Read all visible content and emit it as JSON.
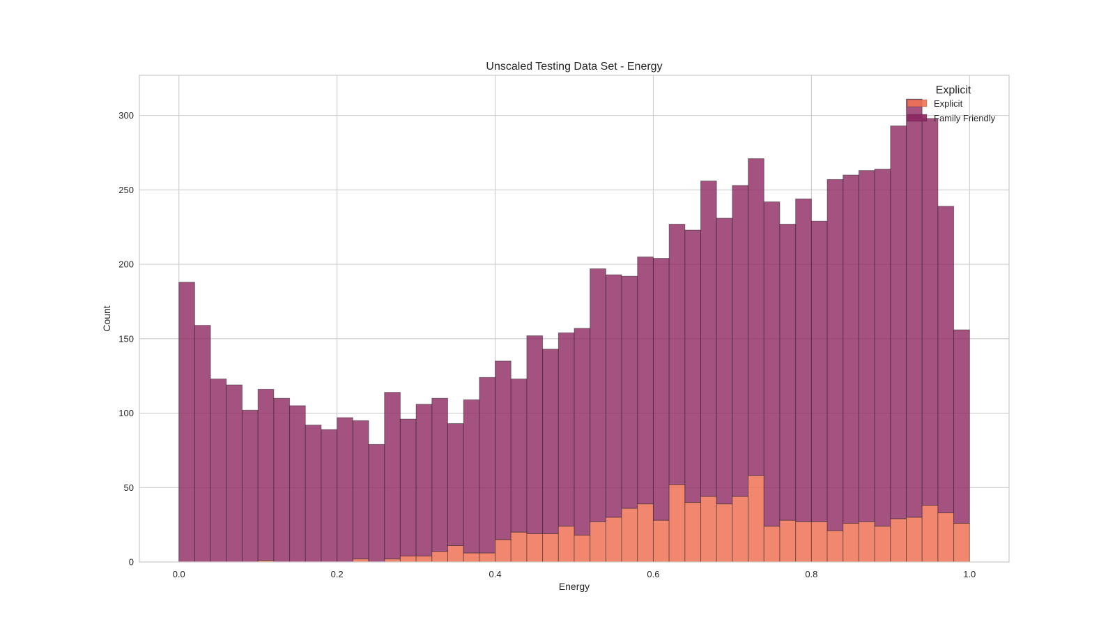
{
  "chart_data": {
    "type": "bar",
    "subtype": "stacked-histogram",
    "title": "Unscaled Testing Data Set - Energy",
    "xlabel": "Energy",
    "ylabel": "Count",
    "xlim": [
      -0.05,
      1.05
    ],
    "ylim": [
      0,
      327
    ],
    "xticks": [
      0.0,
      0.2,
      0.4,
      0.6,
      0.8,
      1.0
    ],
    "xtick_labels": [
      "0.0",
      "0.2",
      "0.4",
      "0.6",
      "0.8",
      "1.0"
    ],
    "yticks": [
      0,
      50,
      100,
      150,
      200,
      250,
      300
    ],
    "ytick_labels": [
      "0",
      "50",
      "100",
      "150",
      "200",
      "250",
      "300"
    ],
    "grid": true,
    "bin_start": 0.0,
    "bin_end": 1.0,
    "legend": {
      "title": "Explicit",
      "placement": "top-right",
      "entries": [
        "Explicit",
        "Family Friendly"
      ]
    },
    "series": [
      {
        "name": "Explicit",
        "color": "#ef7255",
        "values": [
          0,
          0,
          0,
          0,
          0,
          1,
          0,
          0,
          0,
          0,
          0,
          2,
          0,
          2,
          4,
          4,
          7,
          11,
          6,
          6,
          15,
          20,
          19,
          19,
          24,
          18,
          27,
          30,
          36,
          39,
          28,
          52,
          40,
          44,
          39,
          44,
          58,
          24,
          28,
          27,
          27,
          21,
          26,
          27,
          24,
          29,
          30,
          38,
          33,
          26
        ]
      },
      {
        "name": "Family Friendly",
        "color": "#8d2760",
        "totals": [
          188,
          159,
          123,
          119,
          102,
          116,
          110,
          105,
          92,
          89,
          97,
          95,
          79,
          114,
          96,
          106,
          110,
          93,
          109,
          124,
          135,
          123,
          152,
          143,
          154,
          157,
          197,
          193,
          192,
          205,
          204,
          227,
          223,
          256,
          231,
          253,
          271,
          242,
          227,
          244,
          229,
          257,
          260,
          263,
          264,
          293,
          311,
          298,
          239,
          156
        ]
      }
    ]
  }
}
